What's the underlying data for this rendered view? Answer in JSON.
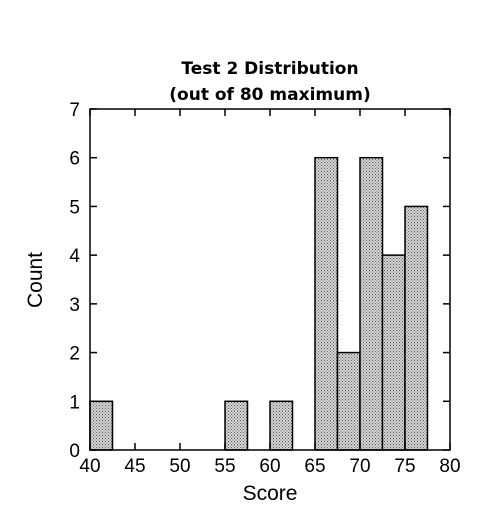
{
  "chart_data": {
    "type": "bar",
    "title": "Test 2 Distribution",
    "subtitle": "(out of 80 maximum)",
    "xlabel": "Score",
    "ylabel": "Count",
    "xlim": [
      40,
      80
    ],
    "ylim": [
      0,
      7
    ],
    "x_ticks": [
      "40",
      "45",
      "50",
      "55",
      "60",
      "65",
      "70",
      "75",
      "80"
    ],
    "y_ticks": [
      "0",
      "1",
      "2",
      "3",
      "4",
      "5",
      "6",
      "7"
    ],
    "bin_width": 2.5,
    "bins": [
      {
        "start": 40,
        "count": 1
      },
      {
        "start": 55,
        "count": 1
      },
      {
        "start": 60,
        "count": 1
      },
      {
        "start": 65,
        "count": 6
      },
      {
        "start": 67.5,
        "count": 2
      },
      {
        "start": 70,
        "count": 6
      },
      {
        "start": 72.5,
        "count": 4
      },
      {
        "start": 75,
        "count": 5
      }
    ],
    "grid": false,
    "bar_fill": "#bdbdbd",
    "bar_stroke": "#000000"
  }
}
